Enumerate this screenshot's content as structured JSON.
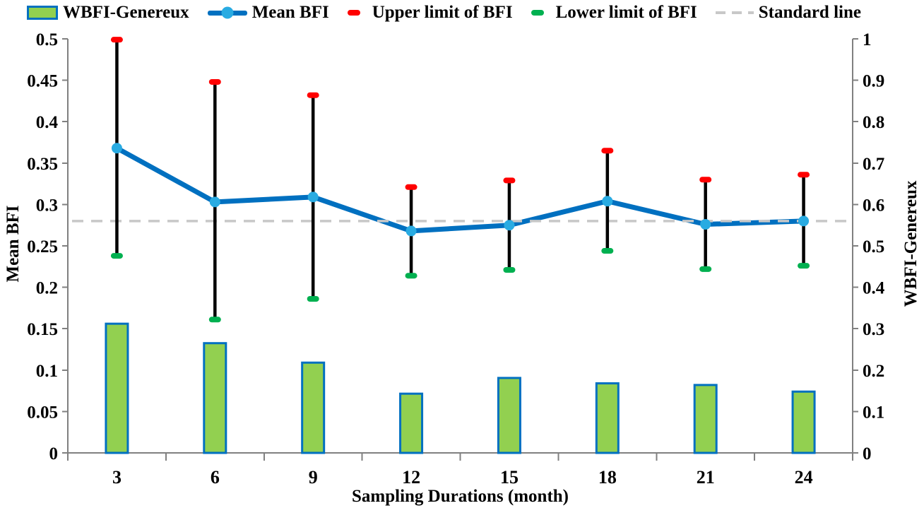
{
  "legend": {
    "items": [
      {
        "label": "WBFI-Genereux",
        "swatch": "bar"
      },
      {
        "label": "Mean BFI",
        "swatch": "line-marker"
      },
      {
        "label": "Upper limit of BFI",
        "swatch": "red-dash"
      },
      {
        "label": "Lower limit of BFI",
        "swatch": "green-dash"
      },
      {
        "label": "Standard line",
        "swatch": "gray-dashed-line"
      }
    ]
  },
  "chart_data": {
    "type": "combo",
    "categories": [
      3,
      6,
      9,
      12,
      15,
      18,
      21,
      24
    ],
    "x_tick_labels": [
      "3",
      "6",
      "9",
      "12",
      "15",
      "18",
      "21",
      "24"
    ],
    "xlabel": "Sampling Durations (month)",
    "ylabel_left": "Mean BFI",
    "ylabel_right": "WBFI-Genereux",
    "ylim_left": [
      0,
      0.5
    ],
    "left_tick_labels": [
      "0",
      "0.05",
      "0.1",
      "0.15",
      "0.2",
      "0.25",
      "0.3",
      "0.35",
      "0.4",
      "0.45",
      "0.5"
    ],
    "ylim_right": [
      0,
      1
    ],
    "right_tick_labels": [
      "0",
      "0.1",
      "0.2",
      "0.3",
      "0.4",
      "0.5",
      "0.6",
      "0.7",
      "0.8",
      "0.9",
      "1"
    ],
    "grid": false,
    "legend_position": "top",
    "series": [
      {
        "name": "WBFI-Genereux",
        "type": "bar",
        "axis": "right",
        "values": [
          0.312,
          0.265,
          0.218,
          0.143,
          0.181,
          0.168,
          0.164,
          0.148
        ]
      },
      {
        "name": "Mean BFI",
        "type": "line",
        "axis": "left",
        "values": [
          0.368,
          0.303,
          0.309,
          0.268,
          0.275,
          0.304,
          0.276,
          0.28
        ]
      },
      {
        "name": "Upper limit of BFI",
        "type": "error-cap-upper",
        "axis": "left",
        "values": [
          0.499,
          0.448,
          0.432,
          0.321,
          0.329,
          0.365,
          0.33,
          0.336
        ]
      },
      {
        "name": "Lower limit of BFI",
        "type": "error-cap-lower",
        "axis": "left",
        "values": [
          0.238,
          0.161,
          0.186,
          0.214,
          0.221,
          0.244,
          0.222,
          0.226
        ]
      },
      {
        "name": "Standard line",
        "type": "hline",
        "axis": "left",
        "value": 0.28
      }
    ]
  },
  "colors": {
    "bar_fill": "#92D050",
    "bar_border": "#0070C0",
    "line": "#0070C0",
    "marker": "#29ABE2",
    "upper_cap": "#FF0000",
    "lower_cap": "#00B050",
    "error_line": "#000000",
    "standard_line": "#C8C8C8",
    "axis": "#808080",
    "text": "#000000"
  }
}
